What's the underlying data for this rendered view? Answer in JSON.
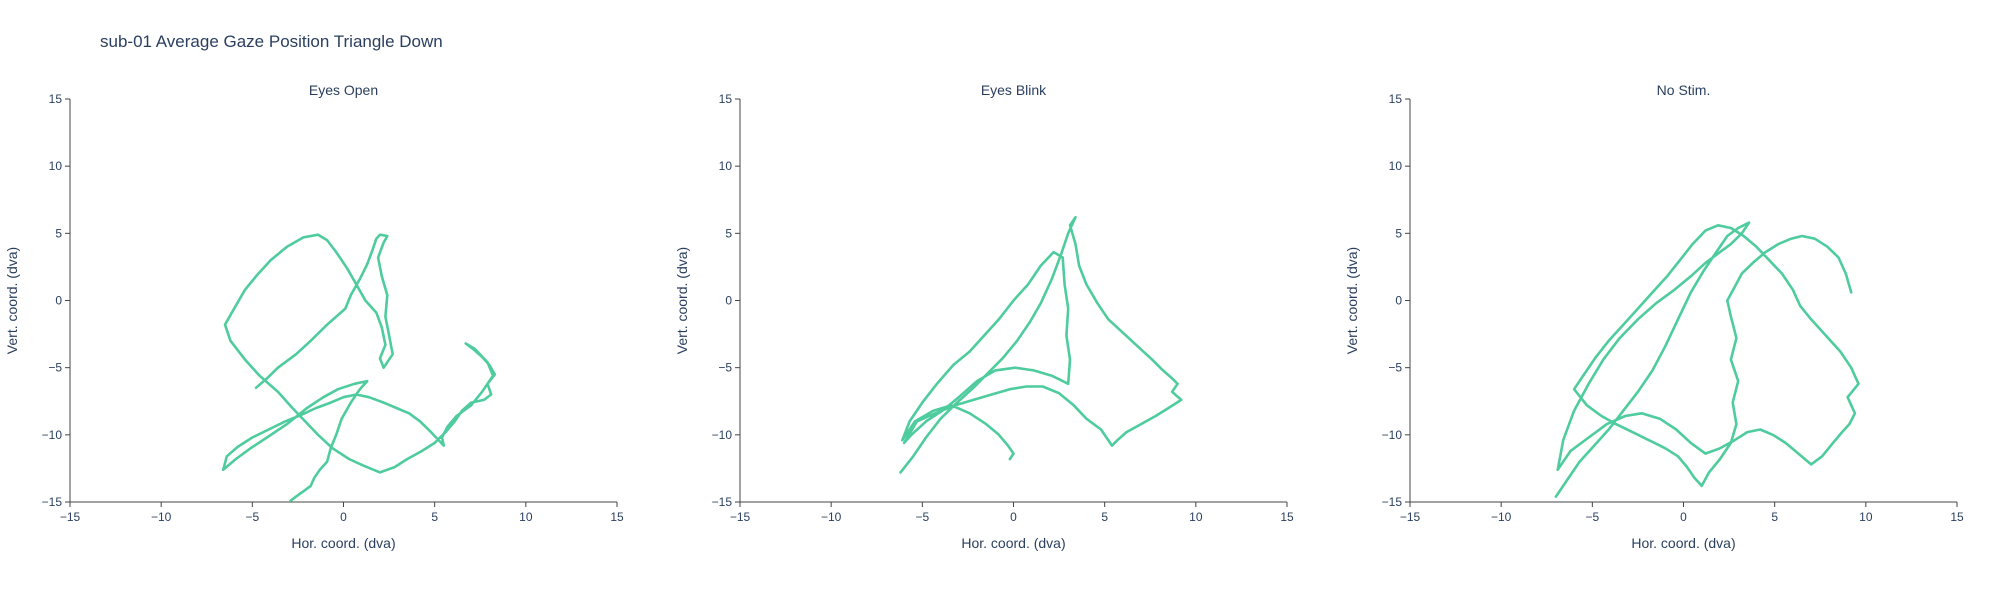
{
  "title": "sub-01 Average Gaze Position Triangle Down",
  "colors": {
    "trace": "#4fcc9e",
    "axis": "#444444",
    "text": "#2a3f5f"
  },
  "chart_data": [
    {
      "type": "line",
      "title": "Eyes Open",
      "xlabel": "Hor. coord. (dva)",
      "ylabel": "Vert. coord. (dva)",
      "xlim": [
        -15,
        15
      ],
      "ylim": [
        -15,
        15
      ],
      "xticks": [
        "−15",
        "−10",
        "−5",
        "0",
        "5",
        "10",
        "15"
      ],
      "yticks": [
        "−15",
        "−10",
        "−5",
        "0",
        "5",
        "10",
        "15"
      ],
      "grid": false,
      "series": [
        {
          "x": [
            -4.8,
            -4.2,
            -3.6,
            -2.6,
            -1.8,
            -0.9,
            0.1,
            0.4,
            0.9,
            1.3,
            1.6,
            1.8,
            2.0,
            2.4,
            2.2,
            1.9,
            2.1,
            2.4,
            2.3,
            2.5,
            2.7,
            2.2,
            2.0,
            2.3,
            2.1,
            1.8,
            1.2,
            0.7,
            0.2,
            -0.4,
            -0.9,
            -1.4,
            -2.2,
            -3.1,
            -4.0,
            -4.8,
            -5.4,
            -6.0,
            -6.5,
            -6.2,
            -5.4,
            -4.6,
            -3.6,
            -2.8,
            -2.1,
            -1.4,
            -0.6,
            0.3,
            1.1,
            2.0,
            2.8,
            3.5,
            4.3,
            5.0,
            5.6,
            6.1,
            6.5,
            7.0,
            7.7,
            8.1,
            7.9,
            8.3,
            8.0,
            7.6,
            7.1,
            6.7,
            7.2,
            7.9,
            8.2,
            7.6,
            7.0,
            6.2,
            5.7,
            5.4,
            5.5,
            4.8,
            4.2,
            3.6,
            2.9,
            2.2,
            1.4,
            0.7,
            0.0,
            -0.7,
            -1.5,
            -2.3,
            -3.2,
            -4.1,
            -5.0,
            -5.8,
            -6.4,
            -6.6,
            -5.9,
            -5.1,
            -4.2,
            -3.1,
            -2.0,
            -1.1,
            -0.3,
            0.6,
            1.3,
            0.9,
            0.4,
            -0.1,
            -0.4,
            -0.7,
            -0.9,
            -1.3,
            -1.6,
            -1.8,
            -2.2,
            -2.6,
            -2.9
          ],
          "y": [
            -6.5,
            -5.8,
            -5.0,
            -4.0,
            -3.0,
            -1.8,
            -0.6,
            0.4,
            1.6,
            2.7,
            3.8,
            4.6,
            4.9,
            4.8,
            4.3,
            3.2,
            1.8,
            0.4,
            -1.2,
            -2.6,
            -4.0,
            -5.0,
            -4.3,
            -3.3,
            -2.0,
            -0.9,
            0.0,
            1.2,
            2.4,
            3.6,
            4.5,
            4.9,
            4.7,
            4.0,
            3.0,
            1.8,
            0.8,
            -0.6,
            -1.8,
            -3.0,
            -4.4,
            -5.6,
            -6.8,
            -8.0,
            -9.0,
            -10.0,
            -11.0,
            -11.8,
            -12.3,
            -12.8,
            -12.4,
            -11.8,
            -11.2,
            -10.6,
            -9.8,
            -9.0,
            -8.2,
            -7.6,
            -7.4,
            -7.0,
            -6.2,
            -5.5,
            -4.8,
            -4.2,
            -3.6,
            -3.2,
            -3.6,
            -4.6,
            -5.6,
            -6.8,
            -7.8,
            -8.6,
            -9.4,
            -10.2,
            -10.8,
            -9.8,
            -9.0,
            -8.4,
            -8.0,
            -7.6,
            -7.2,
            -7.0,
            -7.2,
            -7.6,
            -8.0,
            -8.5,
            -9.0,
            -9.6,
            -10.2,
            -10.9,
            -11.6,
            -12.6,
            -11.8,
            -11.0,
            -10.2,
            -9.2,
            -8.0,
            -7.2,
            -6.6,
            -6.2,
            -6.0,
            -6.6,
            -7.6,
            -8.8,
            -10.0,
            -11.0,
            -12.0,
            -12.6,
            -13.2,
            -13.8,
            -14.2,
            -14.6,
            -14.9
          ]
        }
      ]
    },
    {
      "type": "line",
      "title": "Eyes Blink",
      "xlabel": "Hor. coord. (dva)",
      "ylabel": "Vert. coord. (dva)",
      "xlim": [
        -15,
        15
      ],
      "ylim": [
        -15,
        15
      ],
      "xticks": [
        "−15",
        "−10",
        "−5",
        "0",
        "5",
        "10",
        "15"
      ],
      "yticks": [
        "−15",
        "−10",
        "−5",
        "0",
        "5",
        "10",
        "15"
      ],
      "grid": false,
      "series": [
        {
          "x": [
            -6.2,
            -5.5,
            -4.8,
            -4.0,
            -3.1,
            -2.2,
            -1.4,
            -0.6,
            0.2,
            0.9,
            1.5,
            2.1,
            2.6,
            3.0,
            3.4,
            3.1,
            3.4,
            3.6,
            4.0,
            4.6,
            5.2,
            6.0,
            6.8,
            7.6,
            8.2,
            8.7,
            9.0,
            8.7,
            9.2,
            8.5,
            7.8,
            7.0,
            6.2,
            5.7,
            5.4,
            4.8,
            4.0,
            3.3,
            2.5,
            1.6,
            0.7,
            -0.2,
            -1.2,
            -2.2,
            -3.2,
            -4.3,
            -5.3,
            -6.0,
            -5.6,
            -4.8,
            -3.9,
            -3.0,
            -2.0,
            -1.0,
            0.1,
            1.1,
            2.1,
            3.0,
            3.1,
            2.9,
            3.0,
            2.8,
            2.7,
            2.2,
            1.5,
            0.8,
            0.0,
            -0.8,
            -1.6,
            -2.4,
            -3.3,
            -4.2,
            -5.0,
            -5.7,
            -6.1,
            -5.4,
            -4.4,
            -3.4,
            -2.4,
            -1.5,
            -0.8,
            -0.3,
            0.0,
            -0.2
          ],
          "y": [
            -12.8,
            -11.6,
            -10.2,
            -8.8,
            -7.6,
            -6.5,
            -5.4,
            -4.3,
            -3.0,
            -1.6,
            -0.2,
            1.6,
            3.4,
            5.0,
            6.2,
            5.6,
            4.2,
            2.6,
            1.2,
            -0.2,
            -1.4,
            -2.4,
            -3.4,
            -4.4,
            -5.2,
            -5.8,
            -6.2,
            -6.8,
            -7.4,
            -8.0,
            -8.6,
            -9.2,
            -9.8,
            -10.4,
            -10.8,
            -9.6,
            -8.8,
            -7.8,
            -6.9,
            -6.4,
            -6.4,
            -6.6,
            -7.0,
            -7.4,
            -7.8,
            -8.4,
            -9.0,
            -10.6,
            -10.0,
            -9.0,
            -8.2,
            -7.2,
            -6.0,
            -5.2,
            -5.0,
            -5.2,
            -5.6,
            -6.2,
            -4.4,
            -2.6,
            -0.6,
            1.2,
            3.2,
            3.6,
            2.6,
            1.2,
            0.0,
            -1.4,
            -2.6,
            -3.8,
            -4.8,
            -6.2,
            -7.6,
            -9.0,
            -10.4,
            -9.0,
            -8.2,
            -7.8,
            -8.4,
            -9.2,
            -10.0,
            -10.8,
            -11.4,
            -11.8
          ]
        }
      ]
    },
    {
      "type": "line",
      "title": "No Stim.",
      "xlabel": "Hor. coord. (dva)",
      "ylabel": "Vert. coord. (dva)",
      "xlim": [
        -15,
        15
      ],
      "ylim": [
        -15,
        15
      ],
      "xticks": [
        "−15",
        "−10",
        "−5",
        "0",
        "5",
        "10",
        "15"
      ],
      "yticks": [
        "−15",
        "−10",
        "−5",
        "0",
        "5",
        "10",
        "15"
      ],
      "grid": false,
      "series": [
        {
          "x": [
            -7.0,
            -6.4,
            -5.7,
            -4.9,
            -4.1,
            -3.3,
            -2.5,
            -1.7,
            -1.0,
            -0.3,
            0.4,
            1.1,
            1.8,
            2.4,
            3.0,
            3.6,
            3.2,
            2.6,
            2.0,
            1.2,
            0.4,
            -0.5,
            -1.5,
            -2.5,
            -3.5,
            -4.4,
            -5.2,
            -6.0,
            -6.6,
            -6.9,
            -6.2,
            -5.2,
            -4.2,
            -3.2,
            -2.3,
            -1.3,
            -0.4,
            0.4,
            1.2,
            2.0,
            2.8,
            3.5,
            4.2,
            4.9,
            5.6,
            6.3,
            7.0,
            7.6,
            8.2,
            8.7,
            9.1,
            9.4,
            9.0,
            9.6,
            9.2,
            8.6,
            7.8,
            7.0,
            6.4,
            6.0,
            5.4,
            4.7,
            4.0,
            3.3,
            2.6,
            1.9,
            1.2,
            0.5,
            -0.2,
            -0.9,
            -1.7,
            -2.5,
            -3.3,
            -4.1,
            -4.8,
            -5.4,
            -6.0,
            -5.3,
            -4.5,
            -3.7,
            -2.8,
            -1.9,
            -1.0,
            -0.3,
            0.2,
            0.6,
            1.0,
            1.4,
            2.0,
            2.6,
            2.9,
            2.7,
            3.0,
            2.6,
            2.9,
            2.6,
            2.4,
            2.8,
            3.2,
            3.8,
            4.5,
            5.2,
            5.9,
            6.5,
            7.2,
            7.9,
            8.5,
            8.9,
            9.2
          ],
          "y": [
            -14.6,
            -13.4,
            -12.0,
            -10.8,
            -9.6,
            -8.2,
            -6.8,
            -5.2,
            -3.4,
            -1.4,
            0.6,
            2.2,
            3.6,
            4.8,
            5.4,
            5.8,
            5.0,
            4.2,
            3.6,
            2.8,
            1.8,
            0.8,
            -0.2,
            -1.4,
            -2.8,
            -4.4,
            -6.2,
            -8.2,
            -10.4,
            -12.6,
            -11.2,
            -10.2,
            -9.2,
            -8.6,
            -8.4,
            -8.8,
            -9.6,
            -10.6,
            -11.4,
            -11.0,
            -10.4,
            -9.8,
            -9.6,
            -10.0,
            -10.6,
            -11.4,
            -12.2,
            -11.6,
            -10.6,
            -9.8,
            -9.2,
            -8.4,
            -7.2,
            -6.2,
            -5.0,
            -3.8,
            -2.6,
            -1.4,
            -0.4,
            0.8,
            2.0,
            3.0,
            4.0,
            4.8,
            5.4,
            5.6,
            5.2,
            4.2,
            3.0,
            1.8,
            0.6,
            -0.6,
            -1.8,
            -3.0,
            -4.2,
            -5.4,
            -6.6,
            -7.8,
            -8.6,
            -9.2,
            -9.8,
            -10.4,
            -11.0,
            -11.6,
            -12.4,
            -13.2,
            -13.8,
            -12.8,
            -11.8,
            -10.6,
            -9.2,
            -7.6,
            -6.0,
            -4.4,
            -2.8,
            -1.2,
            0.0,
            1.0,
            2.0,
            2.8,
            3.6,
            4.2,
            4.6,
            4.8,
            4.6,
            4.0,
            3.2,
            2.0,
            0.6
          ]
        }
      ]
    }
  ]
}
